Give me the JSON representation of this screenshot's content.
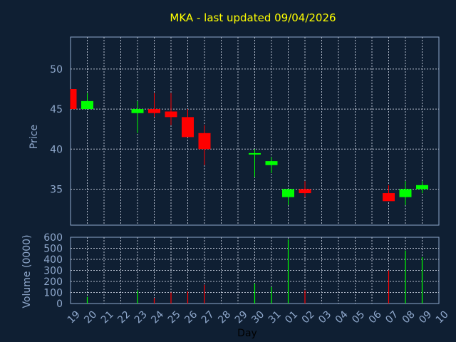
{
  "chart_data": {
    "type": "candlestick",
    "title": "MKA - last updated 09/04/2026",
    "xlabel": "Day",
    "price": {
      "ylabel": "Price",
      "ylim": [
        30.5,
        54
      ],
      "yticks": [
        35,
        40,
        45,
        50
      ]
    },
    "volume": {
      "ylabel": "Volume (0000)",
      "ylim": [
        0,
        600
      ],
      "yticks": [
        0,
        100,
        200,
        300,
        400,
        500,
        600
      ]
    },
    "x_tick_labels": [
      "19",
      "20",
      "21",
      "22",
      "23",
      "24",
      "25",
      "26",
      "27",
      "28",
      "29",
      "30",
      "31",
      "01",
      "02",
      "03",
      "04",
      "05",
      "06",
      "07",
      "08",
      "09",
      "10"
    ],
    "candles": [
      {
        "day": "19",
        "open": 47.5,
        "close": 45.0,
        "high": 47.5,
        "low": 45.0,
        "volume": 0
      },
      {
        "day": "20",
        "open": 45.0,
        "close": 46.0,
        "high": 47.0,
        "low": 45.0,
        "volume": 60
      },
      {
        "day": "23",
        "open": 44.5,
        "close": 45.0,
        "high": 46.0,
        "low": 42.0,
        "volume": 120
      },
      {
        "day": "24",
        "open": 45.0,
        "close": 44.5,
        "high": 47.0,
        "low": 44.0,
        "volume": 50
      },
      {
        "day": "25",
        "open": 44.7,
        "close": 44.0,
        "high": 47.0,
        "low": 43.0,
        "volume": 100
      },
      {
        "day": "26",
        "open": 44.0,
        "close": 41.5,
        "high": 45.0,
        "low": 41.5,
        "volume": 110
      },
      {
        "day": "27",
        "open": 42.0,
        "close": 40.0,
        "high": 43.0,
        "low": 38.0,
        "volume": 170
      },
      {
        "day": "30",
        "open": 39.5,
        "close": 39.5,
        "high": 40.0,
        "low": 36.5,
        "volume": 180
      },
      {
        "day": "31",
        "open": 38.0,
        "close": 38.5,
        "high": 39.0,
        "low": 37.0,
        "volume": 150
      },
      {
        "day": "01",
        "open": 34.0,
        "close": 35.0,
        "high": 35.0,
        "low": 33.0,
        "volume": 580
      },
      {
        "day": "02",
        "open": 35.0,
        "close": 34.5,
        "high": 36.0,
        "low": 34.0,
        "volume": 120
      },
      {
        "day": "07",
        "open": 34.5,
        "close": 33.5,
        "high": 35.5,
        "low": 33.5,
        "volume": 300
      },
      {
        "day": "08",
        "open": 34.0,
        "close": 35.0,
        "high": 36.0,
        "low": 33.0,
        "volume": 480
      },
      {
        "day": "09",
        "open": 35.0,
        "close": 35.5,
        "high": 36.0,
        "low": 34.5,
        "volume": 420
      }
    ],
    "colors": {
      "background": "#0f1f33",
      "up": "#00ff00",
      "down": "#ff0000",
      "grid": "#b4bccc",
      "axis": "#8fa8cc",
      "title": "#ffff00"
    },
    "grid": true
  }
}
